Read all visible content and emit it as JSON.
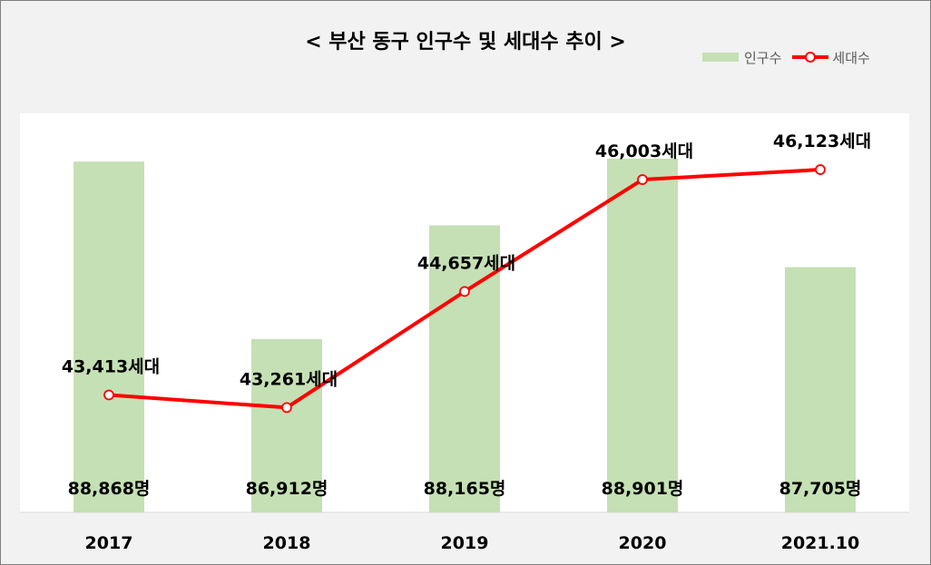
{
  "chart_data": {
    "type": "bar+line",
    "title": "< 부산 동구 인구수 및 세대수 추이 >",
    "categories": [
      "2017",
      "2018",
      "2019",
      "2020",
      "2021.10"
    ],
    "series": [
      {
        "name": "인구수",
        "type": "bar",
        "color": "#c5e0b4",
        "values": [
          88868,
          86912,
          88165,
          88901,
          87705
        ],
        "labels": [
          "88,868명",
          "86,912명",
          "88,165명",
          "88,901명",
          "87,705명"
        ],
        "ylim": [
          85000,
          89400
        ]
      },
      {
        "name": "세대수",
        "type": "line",
        "color": "#ff0000",
        "values": [
          43413,
          43261,
          44657,
          46003,
          46123
        ],
        "labels": [
          "43,413세대",
          "43,261세대",
          "44,657세대",
          "46,003세대",
          "46,123세대"
        ],
        "ylim": [
          42000,
          46800
        ]
      }
    ],
    "legend_position": "top-right",
    "grid": false
  }
}
